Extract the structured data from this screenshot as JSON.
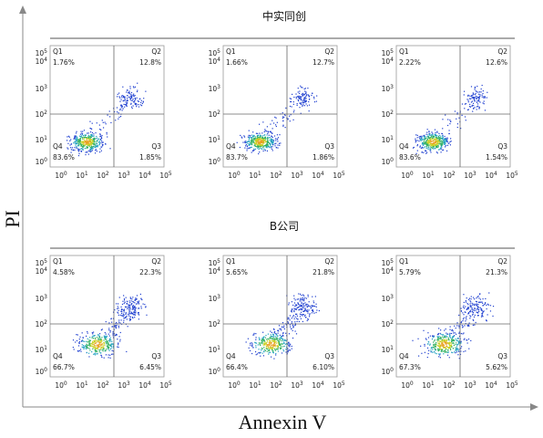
{
  "y_axis_label": "PI",
  "x_axis_label": "Annexin V",
  "tick_base": "10",
  "tick_exponents": [
    "0",
    "1",
    "2",
    "3",
    "4",
    "5"
  ],
  "quadrant_names": [
    "Q1",
    "Q2",
    "Q3",
    "Q4"
  ],
  "groups": [
    {
      "title": "中实同创",
      "panels": [
        {
          "q1": "1.76%",
          "q2": "12.8%",
          "q3": "1.85%",
          "q4": "83.6%"
        },
        {
          "q1": "1.66%",
          "q2": "12.7%",
          "q3": "1.86%",
          "q4": "83.7%"
        },
        {
          "q1": "2.22%",
          "q2": "12.6%",
          "q3": "1.54%",
          "q4": "83.6%"
        }
      ]
    },
    {
      "title": "B公司",
      "panels": [
        {
          "q1": "4.58%",
          "q2": "22.3%",
          "q3": "6.45%",
          "q4": "66.7%"
        },
        {
          "q1": "5.65%",
          "q2": "21.8%",
          "q3": "6.10%",
          "q4": "66.4%"
        },
        {
          "q1": "5.79%",
          "q2": "21.3%",
          "q3": "5.62%",
          "q4": "67.3%"
        }
      ]
    }
  ]
}
